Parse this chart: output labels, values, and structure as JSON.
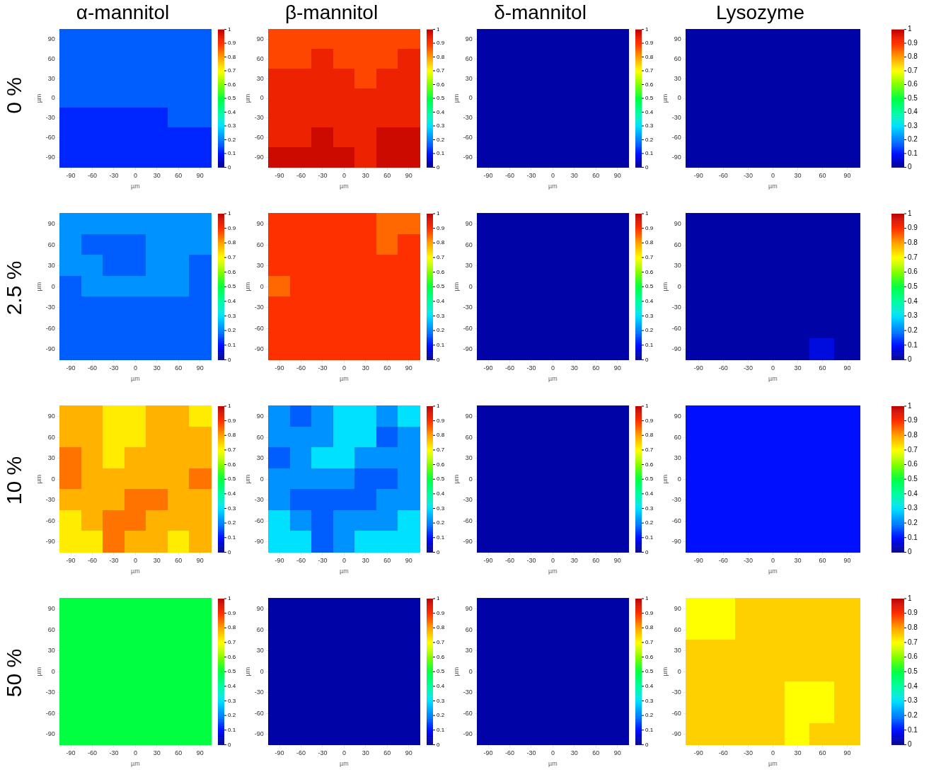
{
  "chart_data": [
    {
      "type": "heatmap",
      "title": "α-mannitol",
      "annotations": [
        "0 %"
      ],
      "xlabel": "µm",
      "ylabel": "µm",
      "clim": [
        0,
        1
      ],
      "cticks": [
        0,
        0.1,
        0.2,
        0.3,
        0.4,
        0.5,
        0.6,
        0.7,
        0.8,
        0.9,
        1
      ],
      "categories": [
        "-90",
        "-60",
        "-30",
        "0",
        "30",
        "60",
        "90"
      ],
      "y_categories": [
        "90",
        "60",
        "30",
        "0",
        "-30",
        "-60",
        "-90"
      ],
      "cells": [
        [
          0.17,
          0.17,
          0.17,
          0.17,
          0.17,
          0.17,
          0.17
        ],
        [
          0.17,
          0.17,
          0.17,
          0.17,
          0.17,
          0.17,
          0.17
        ],
        [
          0.17,
          0.17,
          0.17,
          0.17,
          0.17,
          0.17,
          0.17
        ],
        [
          0.17,
          0.17,
          0.17,
          0.17,
          0.17,
          0.17,
          0.17
        ],
        [
          0.12,
          0.12,
          0.12,
          0.12,
          0.12,
          0.17,
          0.17
        ],
        [
          0.12,
          0.12,
          0.12,
          0.12,
          0.12,
          0.12,
          0.12
        ],
        [
          0.12,
          0.12,
          0.12,
          0.12,
          0.12,
          0.12,
          0.12
        ]
      ]
    },
    {
      "type": "heatmap",
      "title": "β-mannitol",
      "xlabel": "µm",
      "ylabel": "µm",
      "clim": [
        0,
        1
      ],
      "cticks": [
        0,
        0.1,
        0.2,
        0.3,
        0.4,
        0.5,
        0.6,
        0.7,
        0.8,
        0.9,
        1
      ],
      "categories": [
        "-90",
        "-60",
        "-30",
        "0",
        "30",
        "60",
        "90"
      ],
      "y_categories": [
        "90",
        "60",
        "30",
        "0",
        "-30",
        "-60",
        "-90"
      ],
      "cells": [
        [
          0.88,
          0.88,
          0.88,
          0.88,
          0.88,
          0.88,
          0.88
        ],
        [
          0.88,
          0.88,
          0.93,
          0.88,
          0.88,
          0.88,
          0.93
        ],
        [
          0.93,
          0.93,
          0.93,
          0.93,
          0.88,
          0.93,
          0.93
        ],
        [
          0.93,
          0.93,
          0.93,
          0.93,
          0.93,
          0.93,
          0.93
        ],
        [
          0.93,
          0.93,
          0.93,
          0.93,
          0.93,
          0.93,
          0.93
        ],
        [
          0.93,
          0.93,
          0.98,
          0.93,
          0.93,
          0.98,
          0.98
        ],
        [
          0.98,
          0.98,
          0.98,
          0.98,
          0.93,
          0.98,
          0.98
        ]
      ]
    },
    {
      "type": "heatmap",
      "title": "δ-mannitol",
      "xlabel": "µm",
      "ylabel": "µm",
      "clim": [
        0,
        1
      ],
      "cticks": [
        0,
        0.1,
        0.2,
        0.3,
        0.4,
        0.5,
        0.6,
        0.7,
        0.8,
        0.9,
        1
      ],
      "categories": [
        "-90",
        "-60",
        "-30",
        "0",
        "30",
        "60",
        "90"
      ],
      "y_categories": [
        "90",
        "60",
        "30",
        "0",
        "-30",
        "-60",
        "-90"
      ],
      "cells": [
        [
          0.02,
          0.02,
          0.02,
          0.02,
          0.02,
          0.02,
          0.02
        ],
        [
          0.02,
          0.02,
          0.02,
          0.02,
          0.02,
          0.02,
          0.02
        ],
        [
          0.02,
          0.02,
          0.02,
          0.02,
          0.02,
          0.02,
          0.02
        ],
        [
          0.02,
          0.02,
          0.02,
          0.02,
          0.02,
          0.02,
          0.02
        ],
        [
          0.02,
          0.02,
          0.02,
          0.02,
          0.02,
          0.02,
          0.02
        ],
        [
          0.02,
          0.02,
          0.02,
          0.02,
          0.02,
          0.02,
          0.02
        ],
        [
          0.02,
          0.02,
          0.02,
          0.02,
          0.02,
          0.02,
          0.02
        ]
      ]
    },
    {
      "type": "heatmap",
      "title": "Lysozyme",
      "xlabel": "µm",
      "ylabel": "µm",
      "clim": [
        0,
        1
      ],
      "cticks": [
        0,
        0.1,
        0.2,
        0.3,
        0.4,
        0.5,
        0.6,
        0.7,
        0.8,
        0.9,
        1
      ],
      "categories": [
        "-90",
        "-60",
        "-30",
        "0",
        "30",
        "60",
        "90"
      ],
      "y_categories": [
        "90",
        "60",
        "30",
        "0",
        "-30",
        "-60",
        "-90"
      ],
      "cells": [
        [
          0.02,
          0.02,
          0.02,
          0.02,
          0.02,
          0.02,
          0.02
        ],
        [
          0.02,
          0.02,
          0.02,
          0.02,
          0.02,
          0.02,
          0.02
        ],
        [
          0.02,
          0.02,
          0.02,
          0.02,
          0.02,
          0.02,
          0.02
        ],
        [
          0.02,
          0.02,
          0.02,
          0.02,
          0.02,
          0.02,
          0.02
        ],
        [
          0.02,
          0.02,
          0.02,
          0.02,
          0.02,
          0.02,
          0.02
        ],
        [
          0.02,
          0.02,
          0.02,
          0.02,
          0.02,
          0.02,
          0.02
        ],
        [
          0.02,
          0.02,
          0.02,
          0.02,
          0.02,
          0.02,
          0.02
        ]
      ]
    },
    {
      "type": "heatmap",
      "annotations": [
        "2.5 %"
      ],
      "xlabel": "µm",
      "ylabel": "µm",
      "clim": [
        0,
        1
      ],
      "cticks": [
        0,
        0.1,
        0.2,
        0.3,
        0.4,
        0.5,
        0.6,
        0.7,
        0.8,
        0.9,
        1
      ],
      "categories": [
        "-90",
        "-60",
        "-30",
        "0",
        "30",
        "60",
        "90"
      ],
      "y_categories": [
        "90",
        "60",
        "30",
        "0",
        "-30",
        "-60",
        "-90"
      ],
      "cells": [
        [
          0.22,
          0.22,
          0.22,
          0.22,
          0.22,
          0.22,
          0.22
        ],
        [
          0.22,
          0.17,
          0.17,
          0.17,
          0.22,
          0.22,
          0.22
        ],
        [
          0.22,
          0.22,
          0.17,
          0.17,
          0.22,
          0.22,
          0.17
        ],
        [
          0.17,
          0.22,
          0.22,
          0.22,
          0.22,
          0.22,
          0.17
        ],
        [
          0.17,
          0.17,
          0.17,
          0.17,
          0.17,
          0.17,
          0.17
        ],
        [
          0.17,
          0.17,
          0.17,
          0.17,
          0.17,
          0.17,
          0.17
        ],
        [
          0.17,
          0.17,
          0.17,
          0.17,
          0.17,
          0.17,
          0.17
        ]
      ]
    },
    {
      "type": "heatmap",
      "xlabel": "µm",
      "ylabel": "µm",
      "clim": [
        0,
        1
      ],
      "cticks": [
        0,
        0.1,
        0.2,
        0.3,
        0.4,
        0.5,
        0.6,
        0.7,
        0.8,
        0.9,
        1
      ],
      "categories": [
        "-90",
        "-60",
        "-30",
        "0",
        "30",
        "60",
        "90"
      ],
      "y_categories": [
        "90",
        "60",
        "30",
        "0",
        "-30",
        "-60",
        "-90"
      ],
      "cells": [
        [
          0.9,
          0.9,
          0.9,
          0.9,
          0.9,
          0.85,
          0.85
        ],
        [
          0.9,
          0.9,
          0.9,
          0.9,
          0.9,
          0.85,
          0.9
        ],
        [
          0.9,
          0.9,
          0.9,
          0.9,
          0.9,
          0.9,
          0.9
        ],
        [
          0.85,
          0.9,
          0.9,
          0.9,
          0.9,
          0.9,
          0.9
        ],
        [
          0.9,
          0.9,
          0.9,
          0.9,
          0.9,
          0.9,
          0.9
        ],
        [
          0.9,
          0.9,
          0.9,
          0.9,
          0.9,
          0.9,
          0.9
        ],
        [
          0.9,
          0.9,
          0.9,
          0.9,
          0.9,
          0.9,
          0.9
        ]
      ]
    },
    {
      "type": "heatmap",
      "xlabel": "µm",
      "ylabel": "µm",
      "clim": [
        0,
        1
      ],
      "cticks": [
        0,
        0.1,
        0.2,
        0.3,
        0.4,
        0.5,
        0.6,
        0.7,
        0.8,
        0.9,
        1
      ],
      "categories": [
        "-90",
        "-60",
        "-30",
        "0",
        "30",
        "60",
        "90"
      ],
      "y_categories": [
        "90",
        "60",
        "30",
        "0",
        "-30",
        "-60",
        "-90"
      ],
      "cells": [
        [
          0.02,
          0.02,
          0.02,
          0.02,
          0.02,
          0.02,
          0.02
        ],
        [
          0.02,
          0.02,
          0.02,
          0.02,
          0.02,
          0.02,
          0.02
        ],
        [
          0.02,
          0.02,
          0.02,
          0.02,
          0.02,
          0.02,
          0.02
        ],
        [
          0.02,
          0.02,
          0.02,
          0.02,
          0.02,
          0.02,
          0.02
        ],
        [
          0.02,
          0.02,
          0.02,
          0.02,
          0.02,
          0.02,
          0.02
        ],
        [
          0.02,
          0.02,
          0.02,
          0.02,
          0.02,
          0.02,
          0.02
        ],
        [
          0.02,
          0.02,
          0.02,
          0.02,
          0.02,
          0.02,
          0.02
        ]
      ]
    },
    {
      "type": "heatmap",
      "xlabel": "µm",
      "ylabel": "µm",
      "clim": [
        0,
        1
      ],
      "cticks": [
        0,
        0.1,
        0.2,
        0.3,
        0.4,
        0.5,
        0.6,
        0.7,
        0.8,
        0.9,
        1
      ],
      "categories": [
        "-90",
        "-60",
        "-30",
        "0",
        "30",
        "60",
        "90"
      ],
      "y_categories": [
        "90",
        "60",
        "30",
        "0",
        "-30",
        "-60",
        "-90"
      ],
      "cells": [
        [
          0.02,
          0.02,
          0.02,
          0.02,
          0.02,
          0.02,
          0.02
        ],
        [
          0.02,
          0.02,
          0.02,
          0.02,
          0.02,
          0.02,
          0.02
        ],
        [
          0.02,
          0.02,
          0.02,
          0.02,
          0.02,
          0.02,
          0.02
        ],
        [
          0.02,
          0.02,
          0.02,
          0.02,
          0.02,
          0.02,
          0.02
        ],
        [
          0.02,
          0.02,
          0.02,
          0.02,
          0.02,
          0.02,
          0.02
        ],
        [
          0.02,
          0.02,
          0.02,
          0.02,
          0.02,
          0.02,
          0.02
        ],
        [
          0.02,
          0.02,
          0.02,
          0.02,
          0.02,
          0.07,
          0.02
        ]
      ]
    },
    {
      "type": "heatmap",
      "annotations": [
        "10 %"
      ],
      "xlabel": "µm",
      "ylabel": "µm",
      "clim": [
        0,
        1
      ],
      "cticks": [
        0,
        0.1,
        0.2,
        0.3,
        0.4,
        0.5,
        0.6,
        0.7,
        0.8,
        0.9,
        1
      ],
      "categories": [
        "-90",
        "-60",
        "-30",
        "0",
        "30",
        "60",
        "90"
      ],
      "y_categories": [
        "90",
        "60",
        "30",
        "0",
        "-30",
        "-60",
        "-90"
      ],
      "cells": [
        [
          0.78,
          0.78,
          0.72,
          0.72,
          0.78,
          0.78,
          0.72
        ],
        [
          0.78,
          0.78,
          0.72,
          0.72,
          0.78,
          0.78,
          0.78
        ],
        [
          0.84,
          0.78,
          0.72,
          0.78,
          0.78,
          0.78,
          0.78
        ],
        [
          0.84,
          0.78,
          0.78,
          0.78,
          0.78,
          0.78,
          0.84
        ],
        [
          0.78,
          0.78,
          0.78,
          0.84,
          0.84,
          0.78,
          0.78
        ],
        [
          0.72,
          0.78,
          0.84,
          0.84,
          0.78,
          0.78,
          0.78
        ],
        [
          0.72,
          0.72,
          0.84,
          0.78,
          0.78,
          0.72,
          0.78
        ]
      ]
    },
    {
      "type": "heatmap",
      "xlabel": "µm",
      "ylabel": "µm",
      "clim": [
        0,
        1
      ],
      "cticks": [
        0,
        0.1,
        0.2,
        0.3,
        0.4,
        0.5,
        0.6,
        0.7,
        0.8,
        0.9,
        1
      ],
      "categories": [
        "-90",
        "-60",
        "-30",
        "0",
        "30",
        "60",
        "90"
      ],
      "y_categories": [
        "90",
        "60",
        "30",
        "0",
        "-30",
        "-60",
        "-90"
      ],
      "cells": [
        [
          0.22,
          0.17,
          0.22,
          0.3,
          0.3,
          0.22,
          0.3
        ],
        [
          0.22,
          0.22,
          0.22,
          0.3,
          0.3,
          0.17,
          0.22
        ],
        [
          0.17,
          0.22,
          0.3,
          0.3,
          0.22,
          0.22,
          0.22
        ],
        [
          0.22,
          0.22,
          0.22,
          0.22,
          0.17,
          0.17,
          0.22
        ],
        [
          0.22,
          0.17,
          0.17,
          0.17,
          0.17,
          0.22,
          0.22
        ],
        [
          0.3,
          0.22,
          0.17,
          0.22,
          0.22,
          0.22,
          0.3
        ],
        [
          0.3,
          0.3,
          0.17,
          0.22,
          0.3,
          0.3,
          0.3
        ]
      ]
    },
    {
      "type": "heatmap",
      "xlabel": "µm",
      "ylabel": "µm",
      "clim": [
        0,
        1
      ],
      "cticks": [
        0,
        0.1,
        0.2,
        0.3,
        0.4,
        0.5,
        0.6,
        0.7,
        0.8,
        0.9,
        1
      ],
      "categories": [
        "-90",
        "-60",
        "-30",
        "0",
        "30",
        "60",
        "90"
      ],
      "y_categories": [
        "90",
        "60",
        "30",
        "0",
        "-30",
        "-60",
        "-90"
      ],
      "cells": [
        [
          0.02,
          0.02,
          0.02,
          0.02,
          0.02,
          0.02,
          0.02
        ],
        [
          0.02,
          0.02,
          0.02,
          0.02,
          0.02,
          0.02,
          0.02
        ],
        [
          0.02,
          0.02,
          0.02,
          0.02,
          0.02,
          0.02,
          0.02
        ],
        [
          0.02,
          0.02,
          0.02,
          0.02,
          0.02,
          0.02,
          0.02
        ],
        [
          0.02,
          0.02,
          0.02,
          0.02,
          0.02,
          0.02,
          0.02
        ],
        [
          0.02,
          0.02,
          0.02,
          0.02,
          0.02,
          0.02,
          0.02
        ],
        [
          0.02,
          0.02,
          0.02,
          0.02,
          0.02,
          0.02,
          0.02
        ]
      ]
    },
    {
      "type": "heatmap",
      "xlabel": "µm",
      "ylabel": "µm",
      "clim": [
        0,
        1
      ],
      "cticks": [
        0,
        0.1,
        0.2,
        0.3,
        0.4,
        0.5,
        0.6,
        0.7,
        0.8,
        0.9,
        1
      ],
      "categories": [
        "-90",
        "-60",
        "-30",
        "0",
        "30",
        "60",
        "90"
      ],
      "y_categories": [
        "90",
        "60",
        "30",
        "0",
        "-30",
        "-60",
        "-90"
      ],
      "cells": [
        [
          0.1,
          0.1,
          0.1,
          0.1,
          0.1,
          0.1,
          0.1
        ],
        [
          0.1,
          0.1,
          0.1,
          0.1,
          0.1,
          0.1,
          0.1
        ],
        [
          0.1,
          0.1,
          0.1,
          0.1,
          0.1,
          0.1,
          0.1
        ],
        [
          0.1,
          0.1,
          0.1,
          0.1,
          0.1,
          0.1,
          0.1
        ],
        [
          0.1,
          0.1,
          0.1,
          0.1,
          0.1,
          0.1,
          0.1
        ],
        [
          0.1,
          0.1,
          0.1,
          0.1,
          0.1,
          0.1,
          0.1
        ],
        [
          0.1,
          0.1,
          0.1,
          0.1,
          0.1,
          0.1,
          0.1
        ]
      ]
    },
    {
      "type": "heatmap",
      "annotations": [
        "50 %"
      ],
      "xlabel": "µm",
      "ylabel": "µm",
      "clim": [
        0,
        1
      ],
      "cticks": [
        0,
        0.1,
        0.2,
        0.3,
        0.4,
        0.5,
        0.6,
        0.7,
        0.8,
        0.9,
        1
      ],
      "categories": [
        "-90",
        "-60",
        "-30",
        "0",
        "30",
        "60",
        "90"
      ],
      "y_categories": [
        "90",
        "60",
        "30",
        "0",
        "-30",
        "-60",
        "-90"
      ],
      "cells": [
        [
          0.5,
          0.5,
          0.5,
          0.5,
          0.5,
          0.5,
          0.5
        ],
        [
          0.5,
          0.5,
          0.5,
          0.5,
          0.5,
          0.5,
          0.5
        ],
        [
          0.5,
          0.5,
          0.5,
          0.5,
          0.5,
          0.5,
          0.5
        ],
        [
          0.5,
          0.5,
          0.5,
          0.5,
          0.5,
          0.5,
          0.5
        ],
        [
          0.5,
          0.5,
          0.5,
          0.5,
          0.5,
          0.5,
          0.5
        ],
        [
          0.5,
          0.5,
          0.5,
          0.5,
          0.5,
          0.5,
          0.5
        ],
        [
          0.5,
          0.5,
          0.5,
          0.5,
          0.5,
          0.5,
          0.5
        ]
      ]
    },
    {
      "type": "heatmap",
      "xlabel": "µm",
      "ylabel": "µm",
      "clim": [
        0,
        1
      ],
      "cticks": [
        0,
        0.1,
        0.2,
        0.3,
        0.4,
        0.5,
        0.6,
        0.7,
        0.8,
        0.9,
        1
      ],
      "categories": [
        "-90",
        "-60",
        "-30",
        "0",
        "30",
        "60",
        "90"
      ],
      "y_categories": [
        "90",
        "60",
        "30",
        "0",
        "-30",
        "-60",
        "-90"
      ],
      "cells": [
        [
          0.02,
          0.02,
          0.02,
          0.02,
          0.02,
          0.02,
          0.02
        ],
        [
          0.02,
          0.02,
          0.02,
          0.02,
          0.02,
          0.02,
          0.02
        ],
        [
          0.02,
          0.02,
          0.02,
          0.02,
          0.02,
          0.02,
          0.02
        ],
        [
          0.02,
          0.02,
          0.02,
          0.02,
          0.02,
          0.02,
          0.02
        ],
        [
          0.02,
          0.02,
          0.02,
          0.02,
          0.02,
          0.02,
          0.02
        ],
        [
          0.02,
          0.02,
          0.02,
          0.02,
          0.02,
          0.02,
          0.02
        ],
        [
          0.02,
          0.02,
          0.02,
          0.02,
          0.02,
          0.02,
          0.02
        ]
      ]
    },
    {
      "type": "heatmap",
      "xlabel": "µm",
      "ylabel": "µm",
      "clim": [
        0,
        1
      ],
      "cticks": [
        0,
        0.1,
        0.2,
        0.3,
        0.4,
        0.5,
        0.6,
        0.7,
        0.8,
        0.9,
        1
      ],
      "categories": [
        "-90",
        "-60",
        "-30",
        "0",
        "30",
        "60",
        "90"
      ],
      "y_categories": [
        "90",
        "60",
        "30",
        "0",
        "-30",
        "-60",
        "-90"
      ],
      "cells": [
        [
          0.02,
          0.02,
          0.02,
          0.02,
          0.02,
          0.02,
          0.02
        ],
        [
          0.02,
          0.02,
          0.02,
          0.02,
          0.02,
          0.02,
          0.02
        ],
        [
          0.02,
          0.02,
          0.02,
          0.02,
          0.02,
          0.02,
          0.02
        ],
        [
          0.02,
          0.02,
          0.02,
          0.02,
          0.02,
          0.02,
          0.02
        ],
        [
          0.02,
          0.02,
          0.02,
          0.02,
          0.02,
          0.02,
          0.02
        ],
        [
          0.02,
          0.02,
          0.02,
          0.02,
          0.02,
          0.02,
          0.02
        ],
        [
          0.02,
          0.02,
          0.02,
          0.02,
          0.02,
          0.02,
          0.02
        ]
      ]
    },
    {
      "type": "heatmap",
      "xlabel": "µm",
      "ylabel": "µm",
      "clim": [
        0,
        1
      ],
      "cticks": [
        0,
        0.1,
        0.2,
        0.3,
        0.4,
        0.5,
        0.6,
        0.7,
        0.8,
        0.9,
        1
      ],
      "categories": [
        "-90",
        "-60",
        "-30",
        "0",
        "30",
        "60",
        "90"
      ],
      "y_categories": [
        "90",
        "60",
        "30",
        "0",
        "-30",
        "-60",
        "-90"
      ],
      "cells": [
        [
          0.7,
          0.7,
          0.75,
          0.75,
          0.75,
          0.75,
          0.75
        ],
        [
          0.7,
          0.7,
          0.75,
          0.75,
          0.75,
          0.75,
          0.75
        ],
        [
          0.75,
          0.75,
          0.75,
          0.75,
          0.75,
          0.75,
          0.75
        ],
        [
          0.75,
          0.75,
          0.75,
          0.75,
          0.75,
          0.75,
          0.75
        ],
        [
          0.75,
          0.75,
          0.75,
          0.75,
          0.7,
          0.7,
          0.75
        ],
        [
          0.75,
          0.75,
          0.75,
          0.75,
          0.7,
          0.7,
          0.75
        ],
        [
          0.75,
          0.75,
          0.75,
          0.75,
          0.7,
          0.75,
          0.75
        ]
      ]
    }
  ]
}
